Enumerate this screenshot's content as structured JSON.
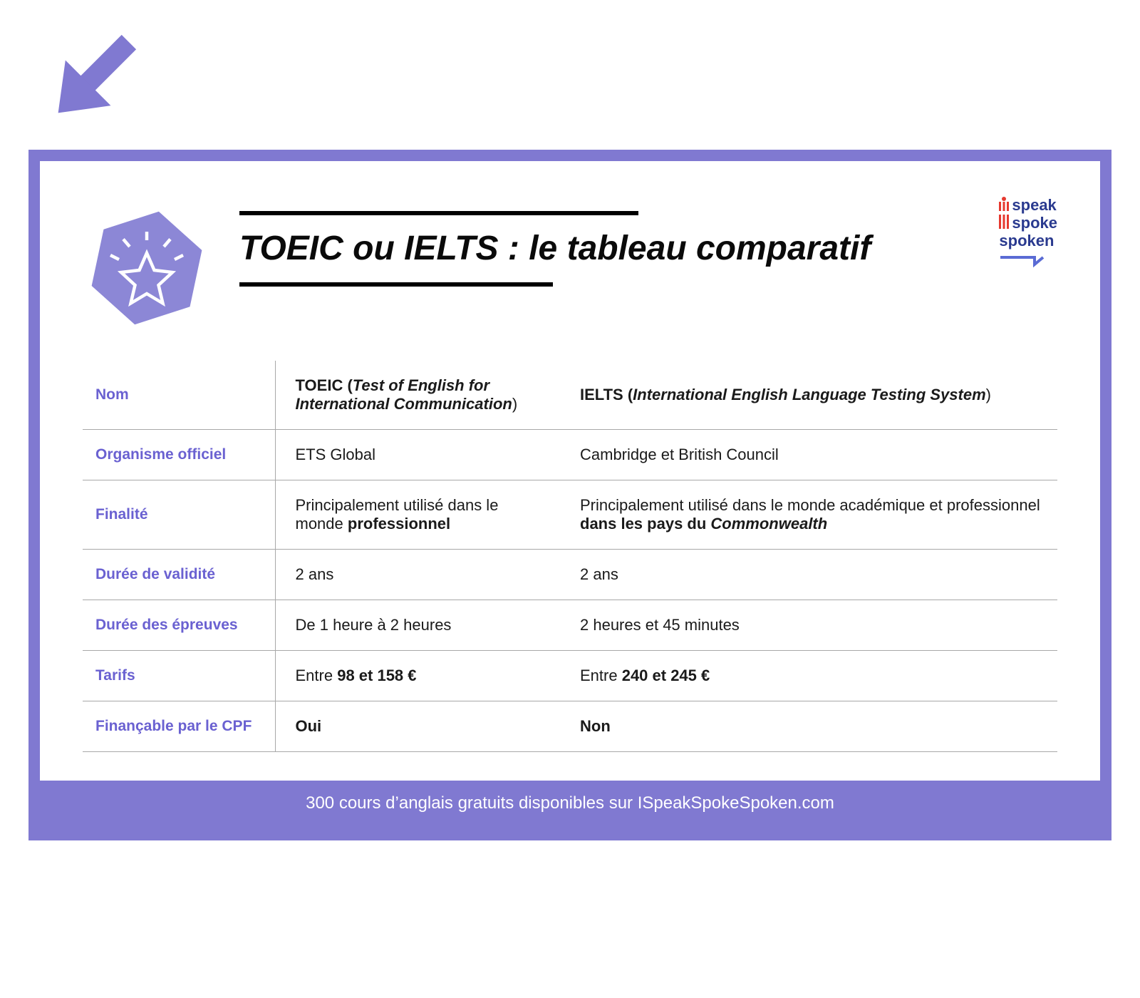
{
  "colors": {
    "accent": "#8079d1",
    "accent_dark": "#6a61d1",
    "black": "#0a0a0a",
    "rule": "#a8a8a8",
    "logo_red": "#e6392f",
    "logo_blue": "#2a3a8f",
    "white": "#ffffff"
  },
  "arrow_icon": "arrow-down-right",
  "hex_icon": "star-burst",
  "title": "TOEIC ou IELTS : le tableau comparatif",
  "logo": {
    "line1": "speak",
    "line2": "spoke",
    "line3": "spoken"
  },
  "table": {
    "type": "comparison-table",
    "columns": [
      "label",
      "TOEIC",
      "IELTS"
    ],
    "rows": [
      {
        "label": "Nom",
        "col1_prefix": "TOEIC (",
        "col1_italic": "Test of English for International Communication",
        "col1_suffix": ")",
        "col2_prefix": "IELTS (",
        "col2_italic": "International English Language Testing System",
        "col2_suffix": ")"
      },
      {
        "label": "Organisme officiel",
        "col1_plain": "ETS Global",
        "col2_plain": "Cambridge et British Council"
      },
      {
        "label": "Finalité",
        "col1_prefix": "Principalement utilisé dans le monde ",
        "col1_bold": "professionnel",
        "col2_prefix": "Principalement utilisé dans le monde académique et professionnel ",
        "col2_bold": "dans les pays du ",
        "col2_bold_italic": "Commonwealth"
      },
      {
        "label": "Durée de validité",
        "col1_plain": "2 ans",
        "col2_plain": "2 ans"
      },
      {
        "label": "Durée des épreuves",
        "col1_plain": "De 1 heure à 2 heures",
        "col2_plain": "2 heures et 45 minutes"
      },
      {
        "label": "Tarifs",
        "col1_prefix": "Entre ",
        "col1_bold": "98 et 158 €",
        "col2_prefix": "Entre ",
        "col2_bold": "240 et 245 €"
      },
      {
        "label": "Finançable par le CPF",
        "col1_bold_only": "Oui",
        "col2_bold_only": "Non"
      }
    ]
  },
  "footer": "300 cours d’anglais gratuits disponibles sur ISpeakSpokeSpoken.com"
}
